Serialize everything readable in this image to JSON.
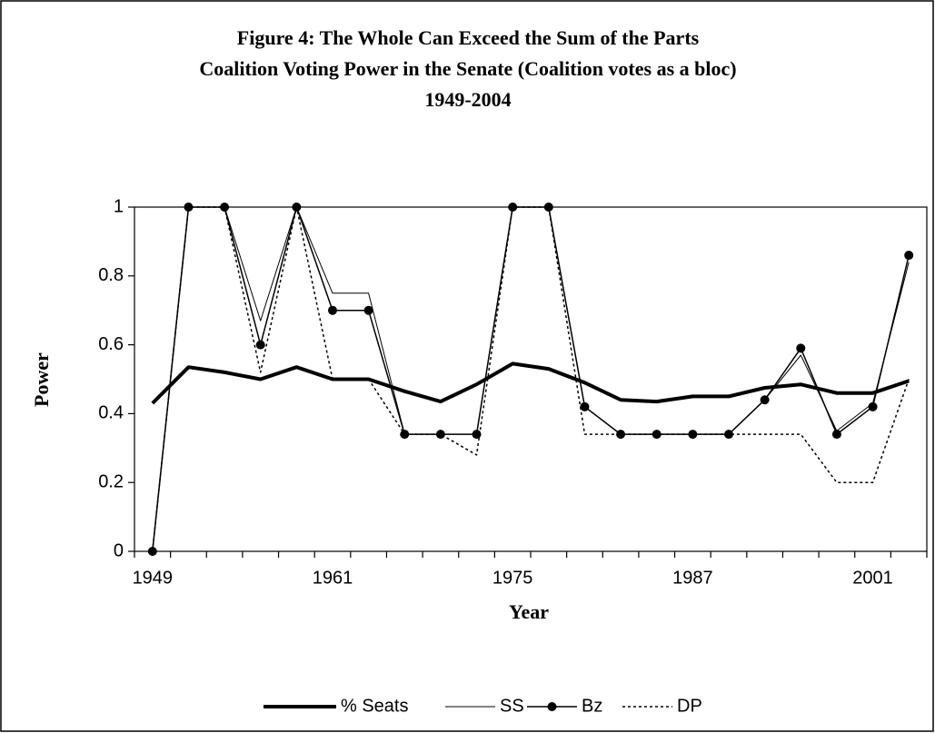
{
  "chart_data": {
    "type": "line",
    "title": [
      "Figure 4: The Whole Can Exceed the Sum of the Parts",
      "Coalition Voting Power in the Senate (Coalition votes as a bloc)",
      "1949-2004"
    ],
    "x_label": "Year",
    "y_label": "Power",
    "categories": [
      "1949",
      null,
      null,
      null,
      null,
      "1961",
      null,
      null,
      null,
      null,
      "1975",
      null,
      null,
      null,
      null,
      "1987",
      null,
      null,
      null,
      null,
      "2001",
      null
    ],
    "ylim": [
      0,
      1
    ],
    "yticks": [
      0,
      0.2,
      0.4,
      0.6,
      0.8,
      1
    ],
    "legend": "bottom",
    "series": [
      {
        "name": "% Seats",
        "color": "#000000",
        "line_width": 4,
        "dash": "solid",
        "marker": "none",
        "values": [
          0.43,
          0.535,
          0.52,
          0.5,
          0.535,
          0.5,
          0.5,
          0.465,
          0.435,
          0.485,
          0.545,
          0.53,
          0.49,
          0.44,
          0.435,
          0.45,
          0.45,
          0.475,
          0.485,
          0.46,
          0.46,
          0.495
        ]
      },
      {
        "name": "SS",
        "color": "#000000",
        "line_width": 1,
        "dash": "solid",
        "marker": "none",
        "values": [
          0,
          1,
          1,
          0.67,
          1,
          0.75,
          0.75,
          0.34,
          0.34,
          0.34,
          1,
          1,
          0.42,
          0.34,
          0.34,
          0.34,
          0.34,
          0.44,
          0.57,
          0.35,
          0.43,
          0.84
        ]
      },
      {
        "name": "Bz",
        "color": "#000000",
        "line_width": 1.5,
        "dash": "solid",
        "marker": "circle",
        "values": [
          0,
          1,
          1,
          0.6,
          1,
          0.7,
          0.7,
          0.34,
          0.34,
          0.34,
          1,
          1,
          0.42,
          0.34,
          0.34,
          0.34,
          0.34,
          0.44,
          0.59,
          0.34,
          0.42,
          0.86
        ]
      },
      {
        "name": "DP",
        "color": "#000000",
        "line_width": 1.5,
        "dash": "dotted",
        "marker": "none",
        "values": [
          0,
          1,
          1,
          0.52,
          1,
          0.5,
          0.5,
          0.34,
          0.34,
          0.28,
          1,
          1,
          0.34,
          0.34,
          0.34,
          0.34,
          0.34,
          0.34,
          0.34,
          0.2,
          0.2,
          0.5
        ]
      }
    ]
  }
}
